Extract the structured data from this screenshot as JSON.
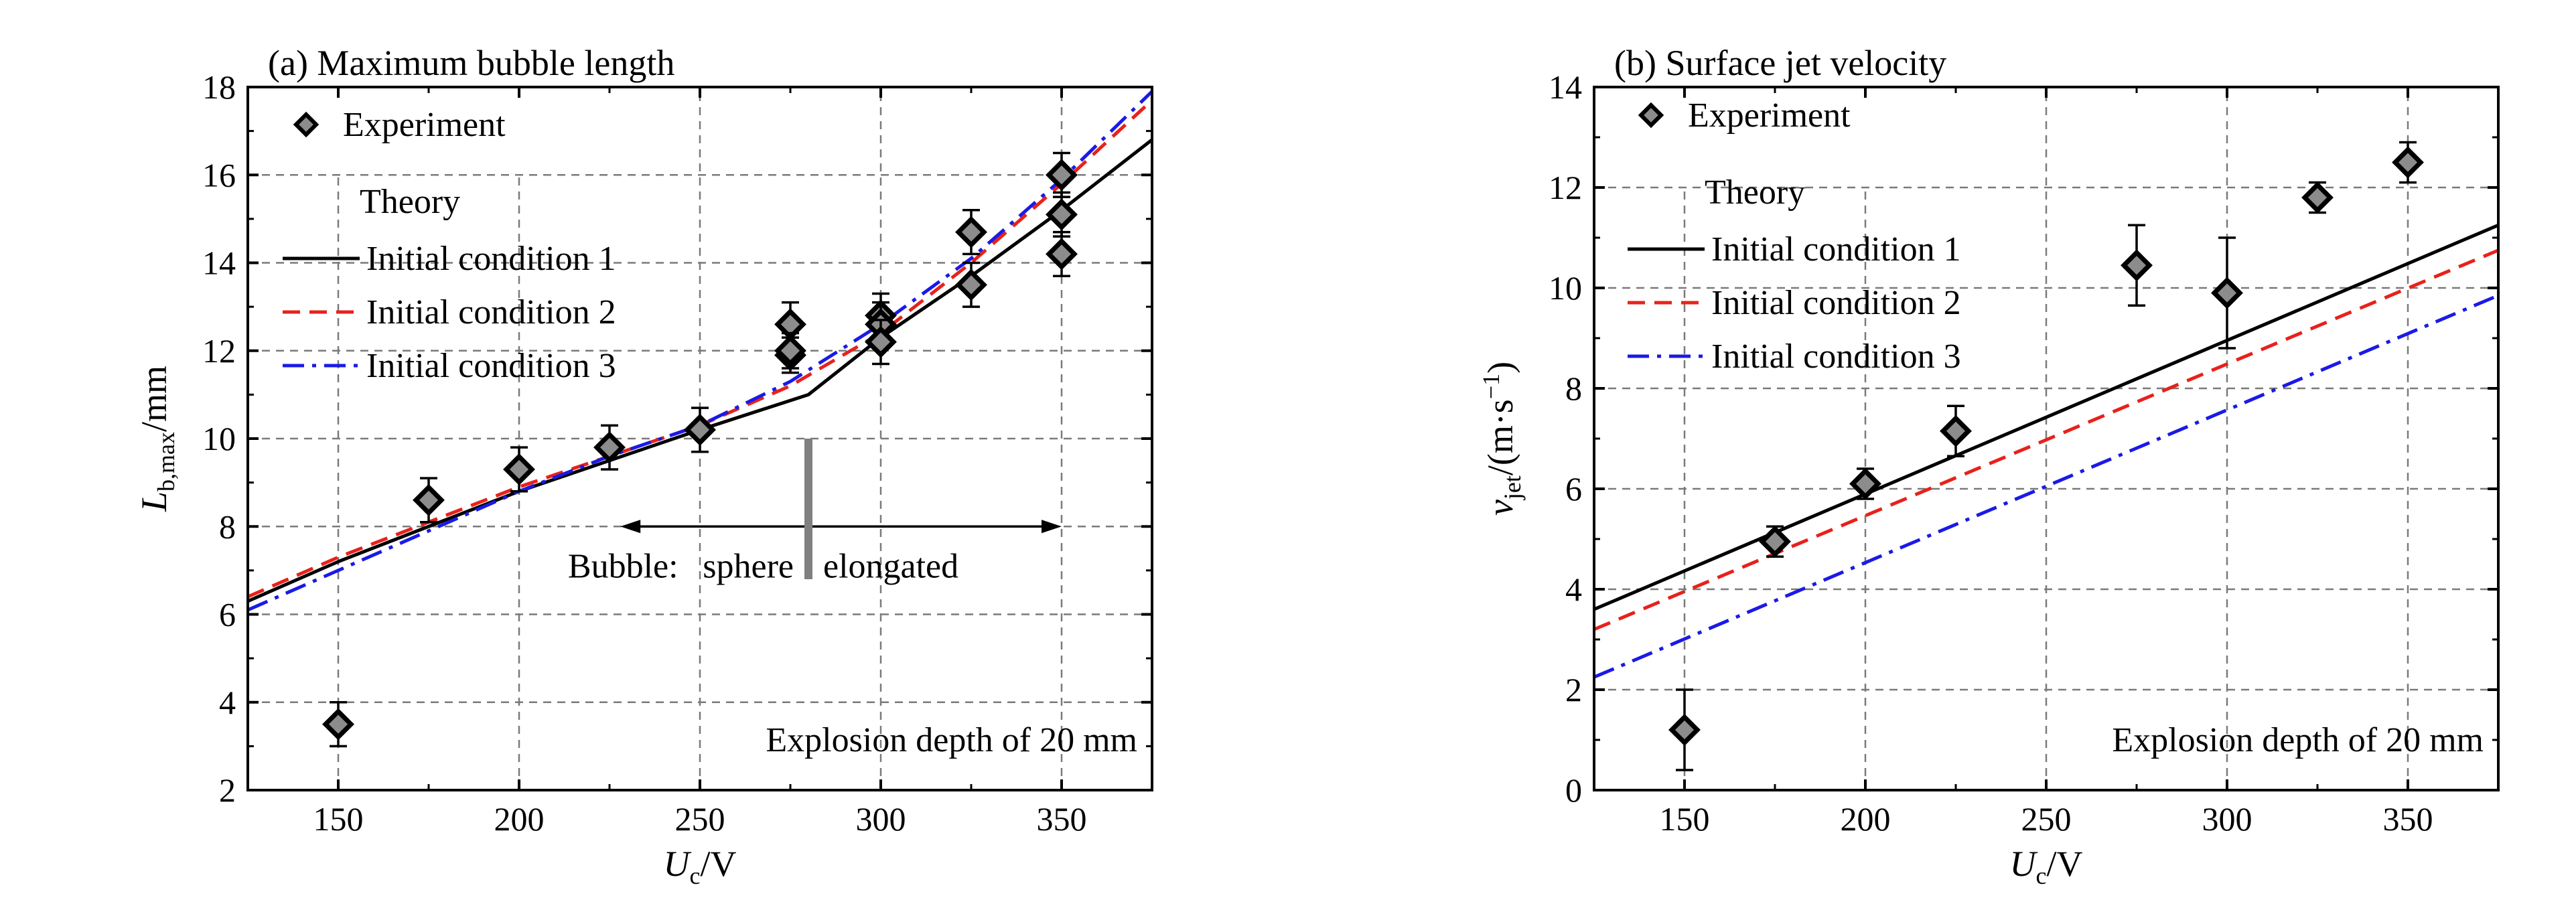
{
  "chart_data": [
    {
      "type": "line",
      "title": "(a) Maximum bubble length",
      "xlabel": {
        "main": "U",
        "sub": "c",
        "unit": "/V"
      },
      "ylabel": {
        "main": "L",
        "sub": "b,max",
        "unit": "/mm"
      },
      "xlim": [
        125,
        375
      ],
      "ylim": [
        2,
        18
      ],
      "xticks": [
        150,
        200,
        250,
        300,
        350
      ],
      "yticks": [
        2,
        4,
        6,
        8,
        10,
        12,
        14,
        16,
        18
      ],
      "grid": "dashed",
      "legend": {
        "experiment_label": "Experiment",
        "theory_header": "Theory",
        "entries": [
          "Initial condition 1",
          "Initial condition 2",
          "Initial condition 3"
        ]
      },
      "annotations": {
        "note": "Explosion depth of 20 mm",
        "bubble_prefix": "Bubble:",
        "bubble_left": "sphere",
        "bubble_right": "elongated",
        "transition_x": 280
      },
      "experiment": {
        "x": [
          150,
          175,
          200,
          225,
          250,
          275,
          275,
          275,
          300,
          300,
          300,
          325,
          325,
          350,
          350,
          350
        ],
        "y": [
          3.5,
          8.6,
          9.3,
          9.8,
          10.2,
          12.6,
          11.9,
          12.0,
          12.8,
          12.6,
          12.2,
          14.7,
          13.5,
          16.0,
          15.1,
          14.2
        ],
        "err": [
          0.5,
          0.5,
          0.5,
          0.5,
          0.5,
          0.5,
          0.4,
          0.4,
          0.5,
          0.5,
          0.5,
          0.5,
          0.5,
          0.5,
          0.5,
          0.5
        ]
      },
      "series": [
        {
          "name": "Initial condition 1",
          "color": "#000000",
          "dash": "solid",
          "x": [
            125,
            150,
            175,
            200,
            225,
            250,
            280,
            300,
            325,
            350,
            375
          ],
          "y": [
            6.3,
            7.2,
            8.0,
            8.8,
            9.5,
            10.2,
            11.0,
            12.3,
            13.7,
            15.2,
            16.8
          ]
        },
        {
          "name": "Initial condition 2",
          "color": "#e8211b",
          "dash": "dashed",
          "x": [
            125,
            150,
            175,
            200,
            225,
            250,
            275,
            300,
            325,
            350,
            375
          ],
          "y": [
            6.4,
            7.3,
            8.1,
            8.9,
            9.6,
            10.3,
            11.2,
            12.4,
            14.0,
            15.8,
            17.7
          ]
        },
        {
          "name": "Initial condition 3",
          "color": "#1a1ae6",
          "dash": "dashdot",
          "x": [
            125,
            150,
            175,
            200,
            225,
            250,
            275,
            300,
            325,
            350,
            375
          ],
          "y": [
            6.1,
            7.0,
            7.9,
            8.8,
            9.6,
            10.3,
            11.3,
            12.6,
            14.1,
            15.9,
            17.9
          ]
        }
      ]
    },
    {
      "type": "line",
      "title": "(b) Surface jet velocity",
      "xlabel": {
        "main": "U",
        "sub": "c",
        "unit": "/V"
      },
      "ylabel": {
        "main": "v",
        "sub": "jet",
        "unit": "/(m·s",
        "sup": "−1",
        "close": ")"
      },
      "xlim": [
        125,
        375
      ],
      "ylim": [
        0,
        14
      ],
      "xticks": [
        150,
        200,
        250,
        300,
        350
      ],
      "yticks": [
        0,
        2,
        4,
        6,
        8,
        10,
        12,
        14
      ],
      "grid": "dashed",
      "legend": {
        "experiment_label": "Experiment",
        "theory_header": "Theory",
        "entries": [
          "Initial condition 1",
          "Initial condition 2",
          "Initial condition 3"
        ]
      },
      "annotations": {
        "note": "Explosion depth of 20 mm"
      },
      "experiment": {
        "x": [
          150,
          175,
          200,
          225,
          275,
          300,
          325,
          350
        ],
        "y": [
          1.2,
          4.95,
          6.1,
          7.15,
          10.45,
          9.9,
          11.8,
          12.5
        ],
        "err": [
          0.8,
          0.3,
          0.3,
          0.5,
          0.8,
          1.1,
          0.3,
          0.4
        ]
      },
      "series": [
        {
          "name": "Initial condition 1",
          "color": "#000000",
          "dash": "solid",
          "x": [
            125,
            375
          ],
          "y": [
            3.6,
            11.25
          ]
        },
        {
          "name": "Initial condition 2",
          "color": "#e8211b",
          "dash": "dashed",
          "x": [
            125,
            375
          ],
          "y": [
            3.2,
            10.75
          ]
        },
        {
          "name": "Initial condition 3",
          "color": "#1a1ae6",
          "dash": "dashdot",
          "x": [
            125,
            375
          ],
          "y": [
            2.25,
            9.85
          ]
        }
      ]
    }
  ]
}
